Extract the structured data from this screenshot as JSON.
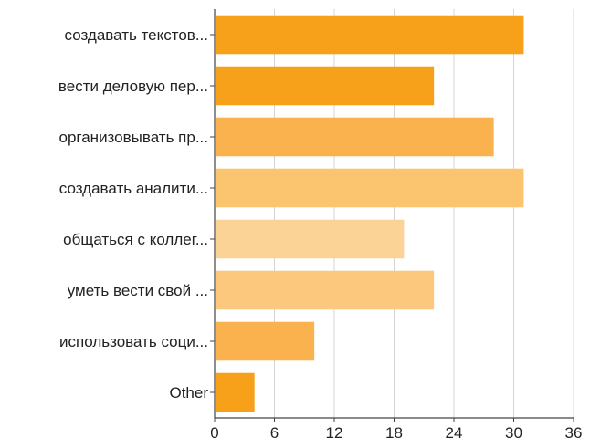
{
  "chart_data": {
    "type": "bar",
    "orientation": "horizontal",
    "title": "",
    "xlabel": "",
    "ylabel": "",
    "categories": [
      "создавать текстов...",
      "вести деловую пер...",
      "организовывать пр...",
      "создавать аналити...",
      "общаться с коллег...",
      "уметь вести свой ...",
      "использовать соци...",
      "Other"
    ],
    "values": [
      31,
      22,
      28,
      31,
      19,
      22,
      10,
      4
    ],
    "bar_colors": [
      "#F7A11A",
      "#F7A11A",
      "#F9B24D",
      "#FBC46E",
      "#FCD397",
      "#FBC87E",
      "#F9B24D",
      "#F7A11A"
    ],
    "xlim": [
      0,
      36
    ],
    "xticks": [
      "0",
      "6",
      "12",
      "18",
      "24",
      "30",
      "36"
    ],
    "grid": true,
    "legend": "none"
  }
}
